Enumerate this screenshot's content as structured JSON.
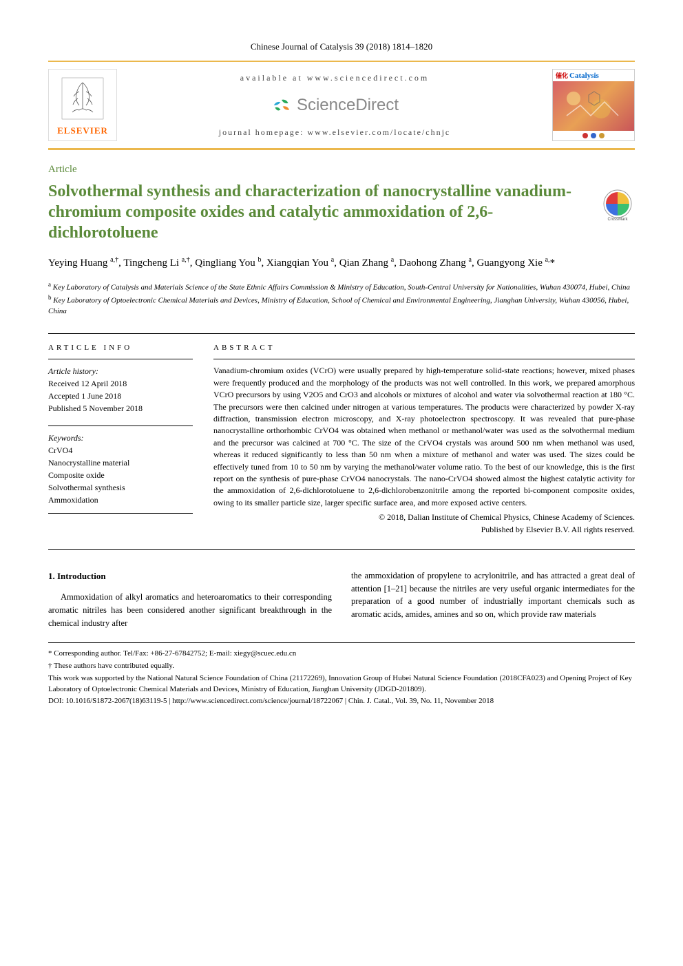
{
  "journal_header": "Chinese Journal of Catalysis 39 (2018) 1814–1820",
  "banner": {
    "elsevier_label": "ELSEVIER",
    "available_text": "available at www.sciencedirect.com",
    "sciencedirect_text": "ScienceDirect",
    "homepage_text": "journal homepage: www.elsevier.com/locate/chnjc",
    "cover_brand_cn": "催化",
    "cover_brand_en": "Catalysis"
  },
  "colors": {
    "accent_orange": "#ebb84d",
    "title_green": "#5b8a3a",
    "elsevier_orange": "#ff6600",
    "sd_gray": "#888888",
    "sd_icon_blue": "#2aa9d6",
    "sd_icon_green": "#2aa95a",
    "sd_icon_orange": "#f08c2e",
    "crossmark_colors": [
      "#e03c3c",
      "#3c70e0",
      "#f0c03c",
      "#3cc070"
    ],
    "cover_gradient_from": "#d4566a",
    "cover_gradient_mid": "#e8a055",
    "cover_gradient_to": "#c44a5a"
  },
  "article_type": "Article",
  "title": "Solvothermal synthesis and characterization of nanocrystalline vanadium-chromium composite oxides and catalytic ammoxidation of 2,6-dichlorotoluene",
  "authors_html": "Yeying Huang <sup>a,†</sup>, Tingcheng Li <sup>a,†</sup>, Qingliang You <sup>b</sup>, Xiangqian You <sup>a</sup>, Qian Zhang <sup>a</sup>, Daohong Zhang <sup>a</sup>, Guangyong Xie <sup>a,</sup>*",
  "affiliations": [
    {
      "sup": "a",
      "text": "Key Laboratory of Catalysis and Materials Science of the State Ethnic Affairs Commission & Ministry of Education, South-Central University for Nationalities, Wuhan 430074, Hubei, China"
    },
    {
      "sup": "b",
      "text": "Key Laboratory of Optoelectronic Chemical Materials and Devices, Ministry of Education, School of Chemical and Environmental Engineering, Jianghan University, Wuhan 430056, Hubei, China"
    }
  ],
  "article_info": {
    "heading": "ARTICLE INFO",
    "history_label": "Article history:",
    "history_lines": [
      "Received 12 April 2018",
      "Accepted 1 June 2018",
      "Published 5 November 2018"
    ],
    "keywords_label": "Keywords:",
    "keywords": [
      "CrVO4",
      "Nanocrystalline material",
      "Composite oxide",
      "Solvothermal synthesis",
      "Ammoxidation"
    ]
  },
  "abstract": {
    "heading": "ABSTRACT",
    "text": "Vanadium-chromium oxides (VCrO) were usually prepared by high-temperature solid-state reactions; however, mixed phases were frequently produced and the morphology of the products was not well controlled. In this work, we prepared amorphous VCrO precursors by using V2O5 and CrO3 and alcohols or mixtures of alcohol and water via solvothermal reaction at 180 °C. The precursors were then calcined under nitrogen at various temperatures. The products were characterized by powder X-ray diffraction, transmission electron microscopy, and X-ray photoelectron spectroscopy. It was revealed that pure-phase nanocrystalline orthorhombic CrVO4 was obtained when methanol or methanol/water was used as the solvothermal medium and the precursor was calcined at 700 °C. The size of the CrVO4 crystals was around 500 nm when methanol was used, whereas it reduced significantly to less than 50 nm when a mixture of methanol and water was used. The sizes could be effectively tuned from 10 to 50 nm by varying the methanol/water volume ratio. To the best of our knowledge, this is the first report on the synthesis of pure-phase CrVO4 nanocrystals. The nano-CrVO4 showed almost the highest catalytic activity for the ammoxidation of 2,6-dichlorotoluene to 2,6-dichlorobenzonitrile among the reported bi-component composite oxides, owing to its smaller particle size, larger specific surface area, and more exposed active centers.",
    "copyright1": "© 2018, Dalian Institute of Chemical Physics, Chinese Academy of Sciences.",
    "copyright2": "Published by Elsevier B.V. All rights reserved."
  },
  "body": {
    "section_heading": "1.   Introduction",
    "col1": "Ammoxidation of alkyl aromatics and heteroaromatics to their corresponding aromatic nitriles has been considered another significant breakthrough in the chemical industry after",
    "col2": "the ammoxidation of propylene to acrylonitrile, and has attracted a great deal of attention [1–21] because the nitriles are very useful organic intermediates for the preparation of a good number of industrially important chemicals such as aromatic acids, amides, amines and so on, which provide raw materials"
  },
  "footnotes": {
    "corresponding": "* Corresponding author. Tel/Fax: +86-27-67842752; E-mail: xiegy@scuec.edu.cn",
    "equal": "† These authors have contributed equally.",
    "funding": "This work was supported by the National Natural Science Foundation of China (21172269), Innovation Group of Hubei Natural Science Foundation (2018CFA023) and Opening Project of Key Laboratory of Optoelectronic Chemical Materials and Devices, Ministry of Education, Jianghan University (JDGD-201809).",
    "doi": "DOI: 10.1016/S1872-2067(18)63119-5 | http://www.sciencedirect.com/science/journal/18722067 | Chin. J. Catal., Vol. 39, No. 11, November 2018"
  },
  "crossmark_label": "CrossMark"
}
